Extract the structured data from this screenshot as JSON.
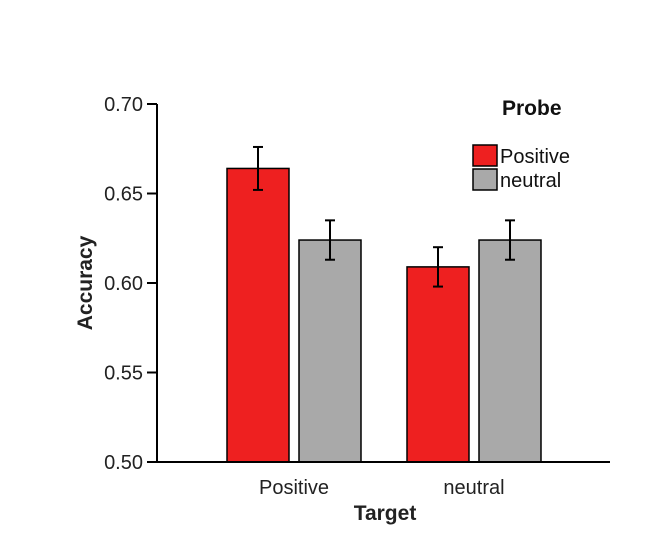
{
  "chart_data": {
    "type": "bar",
    "categories": [
      "Positive",
      "neutral"
    ],
    "series": [
      {
        "name": "Positive",
        "color": "#ee2020",
        "values": [
          0.664,
          0.609
        ],
        "errors": [
          0.012,
          0.011
        ]
      },
      {
        "name": "neutral",
        "color": "#a9a9a9",
        "values": [
          0.624,
          0.624
        ],
        "errors": [
          0.011,
          0.011
        ]
      }
    ],
    "xlabel": "Target",
    "ylabel": "Accuracy",
    "ylim": [
      0.5,
      0.7
    ],
    "yticks": [
      "0.70",
      "0.65",
      "0.60",
      "0.55",
      "0.50"
    ],
    "legend": {
      "title": "Probe",
      "placement": "top-right"
    },
    "grid": false
  }
}
